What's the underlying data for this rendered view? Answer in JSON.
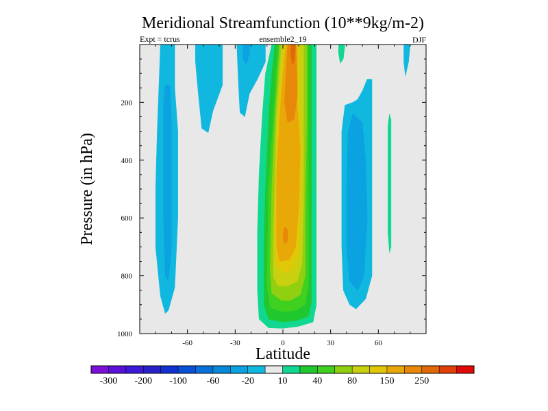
{
  "chart_data": {
    "type": "heatmap",
    "title": "Meridional Streamfunction (10**9kg/m-2)",
    "left_label": "Expt = tcrus",
    "center_label": "ensemble2_19",
    "right_label": "DJF",
    "xlabel": "Latitude",
    "ylabel": "Pressure (in hPa)",
    "xlim": [
      -90,
      90
    ],
    "ylim": [
      0,
      1000
    ],
    "y_inverted": true,
    "x_ticks": [
      -60,
      -30,
      0,
      30,
      60
    ],
    "x_tick_labels": [
      "-60",
      "-30",
      "0",
      "30",
      "60"
    ],
    "y_ticks": [
      200,
      400,
      600,
      800,
      1000
    ],
    "y_tick_labels": [
      "200",
      "400",
      "600",
      "800",
      "1000"
    ],
    "background_level": "-10 to 10",
    "colorbar": {
      "colors": [
        "#7a10d8",
        "#5a10d8",
        "#3c18d8",
        "#2a20c8",
        "#1030d0",
        "#0850d8",
        "#0870d8",
        "#0888d8",
        "#0aa2e0",
        "#10b8e0",
        "#e8e8e8",
        "#10d890",
        "#20c830",
        "#40d020",
        "#90d010",
        "#c8d010",
        "#e0c808",
        "#e8a808",
        "#e88808",
        "#e06808",
        "#e04008",
        "#e00808"
      ],
      "labels": [
        "-300",
        "-200",
        "-100",
        "-60",
        "-20",
        "10",
        "40",
        "80",
        "150",
        "250"
      ]
    },
    "contours": [
      {
        "level": "negative",
        "color": "#10b8e0",
        "points": [
          [
            -77,
            0
          ],
          [
            -68,
            0
          ],
          [
            -68,
            150
          ],
          [
            -66,
            300
          ],
          [
            -66,
            450
          ],
          [
            -66,
            600
          ],
          [
            -67,
            720
          ],
          [
            -68,
            840
          ],
          [
            -72,
            920
          ],
          [
            -74,
            930
          ],
          [
            -77,
            870
          ],
          [
            -80,
            700
          ],
          [
            -80,
            500
          ],
          [
            -79,
            300
          ],
          [
            -78,
            150
          ]
        ]
      },
      {
        "level": "negative",
        "color": "#0aa2e0",
        "points": [
          [
            -74,
            140
          ],
          [
            -71,
            140
          ],
          [
            -70,
            280
          ],
          [
            -70,
            500
          ],
          [
            -70,
            700
          ],
          [
            -72,
            820
          ],
          [
            -74,
            800
          ],
          [
            -75,
            600
          ],
          [
            -75,
            350
          ],
          [
            -75,
            200
          ]
        ]
      },
      {
        "level": "negative",
        "color": "#10b8e0",
        "points": [
          [
            -55,
            0
          ],
          [
            -38,
            0
          ],
          [
            -38,
            140
          ],
          [
            -44,
            230
          ],
          [
            -47,
            305
          ],
          [
            -51,
            290
          ],
          [
            -53,
            180
          ],
          [
            -55,
            60
          ]
        ]
      },
      {
        "level": "negative",
        "color": "#10b8e0",
        "points": [
          [
            -29,
            0
          ],
          [
            -11,
            0
          ],
          [
            -11,
            60
          ],
          [
            -16,
            120
          ],
          [
            -21,
            170
          ],
          [
            -24,
            250
          ],
          [
            -27,
            235
          ],
          [
            -28,
            130
          ]
        ]
      },
      {
        "level": "negative",
        "color": "#0aa2e0",
        "points": [
          [
            -25,
            0
          ],
          [
            -21,
            0
          ],
          [
            -21,
            30
          ],
          [
            -23,
            70
          ],
          [
            -25,
            50
          ]
        ]
      },
      {
        "level": "positive",
        "color": "#10d890",
        "points": [
          [
            -7,
            0
          ],
          [
            21,
            0
          ],
          [
            21,
            150
          ],
          [
            21,
            350
          ],
          [
            21,
            600
          ],
          [
            21,
            800
          ],
          [
            21,
            900
          ],
          [
            19,
            960
          ],
          [
            10,
            975
          ],
          [
            0,
            982
          ],
          [
            -9,
            980
          ],
          [
            -15,
            950
          ],
          [
            -16,
            850
          ],
          [
            -16,
            650
          ],
          [
            -15,
            450
          ],
          [
            -13,
            250
          ],
          [
            -11,
            100
          ]
        ]
      },
      {
        "level": "positive",
        "color": "#20c830",
        "points": [
          [
            -5,
            0
          ],
          [
            18,
            0
          ],
          [
            18,
            200
          ],
          [
            18,
            500
          ],
          [
            18,
            780
          ],
          [
            18,
            890
          ],
          [
            16,
            940
          ],
          [
            9,
            955
          ],
          [
            0,
            960
          ],
          [
            -9,
            950
          ],
          [
            -12,
            900
          ],
          [
            -12,
            700
          ],
          [
            -11,
            500
          ],
          [
            -9,
            250
          ],
          [
            -7,
            100
          ]
        ]
      },
      {
        "level": "positive",
        "color": "#40d020",
        "points": [
          [
            -3,
            0
          ],
          [
            16,
            0
          ],
          [
            16,
            250
          ],
          [
            16,
            600
          ],
          [
            16,
            830
          ],
          [
            14,
            900
          ],
          [
            8,
            920
          ],
          [
            0,
            925
          ],
          [
            -8,
            910
          ],
          [
            -10,
            830
          ],
          [
            -9,
            500
          ],
          [
            -6,
            250
          ]
        ]
      },
      {
        "level": "positive",
        "color": "#90d010",
        "points": [
          [
            -2,
            0
          ],
          [
            15,
            0
          ],
          [
            15,
            260
          ],
          [
            14,
            600
          ],
          [
            14,
            800
          ],
          [
            11,
            865
          ],
          [
            5,
            885
          ],
          [
            -1,
            885
          ],
          [
            -7,
            860
          ],
          [
            -8,
            780
          ],
          [
            -7,
            500
          ],
          [
            -5,
            250
          ]
        ]
      },
      {
        "level": "positive",
        "color": "#c8d010",
        "points": [
          [
            -1,
            0
          ],
          [
            13,
            0
          ],
          [
            13,
            280
          ],
          [
            13,
            560
          ],
          [
            12,
            760
          ],
          [
            9,
            820
          ],
          [
            3,
            835
          ],
          [
            -3,
            835
          ],
          [
            -6,
            805
          ],
          [
            -6,
            700
          ],
          [
            -5,
            450
          ],
          [
            -4,
            250
          ]
        ]
      },
      {
        "level": "positive",
        "color": "#e0c808",
        "points": [
          [
            1,
            0
          ],
          [
            10,
            0
          ],
          [
            10,
            200
          ],
          [
            12,
            350
          ],
          [
            11,
            550
          ],
          [
            10,
            720
          ],
          [
            6,
            780
          ],
          [
            0,
            790
          ],
          [
            -5,
            760
          ],
          [
            -5,
            550
          ],
          [
            -4,
            320
          ],
          [
            -2,
            150
          ]
        ]
      },
      {
        "level": "positive",
        "color": "#e8a808",
        "points": [
          [
            2,
            0
          ],
          [
            9,
            0
          ],
          [
            9,
            200
          ],
          [
            11,
            360
          ],
          [
            10,
            560
          ],
          [
            8,
            700
          ],
          [
            4,
            745
          ],
          [
            -2,
            750
          ],
          [
            -4,
            700
          ],
          [
            -4,
            450
          ],
          [
            -2,
            250
          ],
          [
            0,
            100
          ]
        ]
      },
      {
        "level": "positive",
        "color": "#e88808",
        "points": [
          [
            3,
            0
          ],
          [
            8,
            0
          ],
          [
            9,
            120
          ],
          [
            9,
            180
          ],
          [
            7,
            260
          ],
          [
            3,
            270
          ],
          [
            1,
            200
          ],
          [
            2,
            100
          ]
        ]
      },
      {
        "level": "positive",
        "color": "#e06808",
        "points": [
          [
            5,
            0
          ],
          [
            8,
            0
          ],
          [
            7,
            60
          ],
          [
            6,
            70
          ],
          [
            5,
            40
          ]
        ]
      },
      {
        "level": "positive",
        "color": "#e88808",
        "points": [
          [
            1,
            630
          ],
          [
            3,
            640
          ],
          [
            3,
            680
          ],
          [
            1,
            690
          ],
          [
            0,
            660
          ]
        ]
      },
      {
        "level": "positive",
        "color": "#10d890",
        "points": [
          [
            35,
            0
          ],
          [
            39,
            0
          ],
          [
            38,
            50
          ],
          [
            36,
            65
          ],
          [
            35,
            30
          ]
        ]
      },
      {
        "level": "negative",
        "color": "#10b8e0",
        "points": [
          [
            56,
            120
          ],
          [
            53,
            120
          ],
          [
            50,
            160
          ],
          [
            47,
            190
          ],
          [
            44,
            200
          ],
          [
            39,
            210
          ],
          [
            37,
            300
          ],
          [
            37,
            500
          ],
          [
            37,
            700
          ],
          [
            38,
            850
          ],
          [
            42,
            900
          ],
          [
            46,
            915
          ],
          [
            52,
            880
          ],
          [
            56,
            800
          ],
          [
            56,
            600
          ],
          [
            56,
            300
          ]
        ]
      },
      {
        "level": "negative",
        "color": "#0aa2e0",
        "points": [
          [
            44,
            240
          ],
          [
            41,
            300
          ],
          [
            40,
            500
          ],
          [
            40,
            700
          ],
          [
            42,
            820
          ],
          [
            47,
            850
          ],
          [
            51,
            800
          ],
          [
            53,
            600
          ],
          [
            52,
            400
          ],
          [
            50,
            270
          ]
        ]
      },
      {
        "level": "positive",
        "color": "#10d890",
        "points": [
          [
            67,
            240
          ],
          [
            68,
            260
          ],
          [
            68,
            500
          ],
          [
            68,
            700
          ],
          [
            67,
            720
          ],
          [
            66,
            650
          ],
          [
            66,
            400
          ],
          [
            66,
            280
          ]
        ]
      },
      {
        "level": "negative",
        "color": "#10b8e0",
        "points": [
          [
            76,
            0
          ],
          [
            80,
            0
          ],
          [
            79,
            60
          ],
          [
            77,
            110
          ],
          [
            76,
            60
          ]
        ]
      }
    ]
  }
}
